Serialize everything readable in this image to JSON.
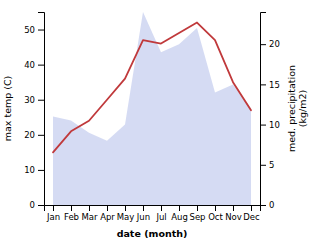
{
  "chart_data": {
    "type": "line",
    "categories": [
      "Jan",
      "Feb",
      "Mar",
      "Apr",
      "May",
      "Jun",
      "Jul",
      "Aug",
      "Sep",
      "Oct",
      "Nov",
      "Dec"
    ],
    "series": [
      {
        "type": "area",
        "axis": "y2",
        "color": "#8899dd",
        "values": [
          11,
          10.5,
          9,
          8,
          10,
          24,
          19,
          20,
          22,
          14,
          15,
          12
        ]
      },
      {
        "type": "line",
        "color": "#c0393b",
        "values": [
          15,
          21,
          24,
          30,
          36,
          47,
          46,
          49,
          52,
          47,
          35,
          27
        ]
      }
    ],
    "xlabel": "date (month)",
    "ylabel": "max temp (C)",
    "y2label": "med. precipitation\n(kg/m2)",
    "ylim": [
      0,
      55
    ],
    "yticks": [
      0,
      10,
      20,
      30,
      40,
      50
    ],
    "y2lim": [
      0,
      24
    ],
    "y2ticks": [
      0,
      5,
      10,
      15,
      20
    ],
    "grid": false
  }
}
